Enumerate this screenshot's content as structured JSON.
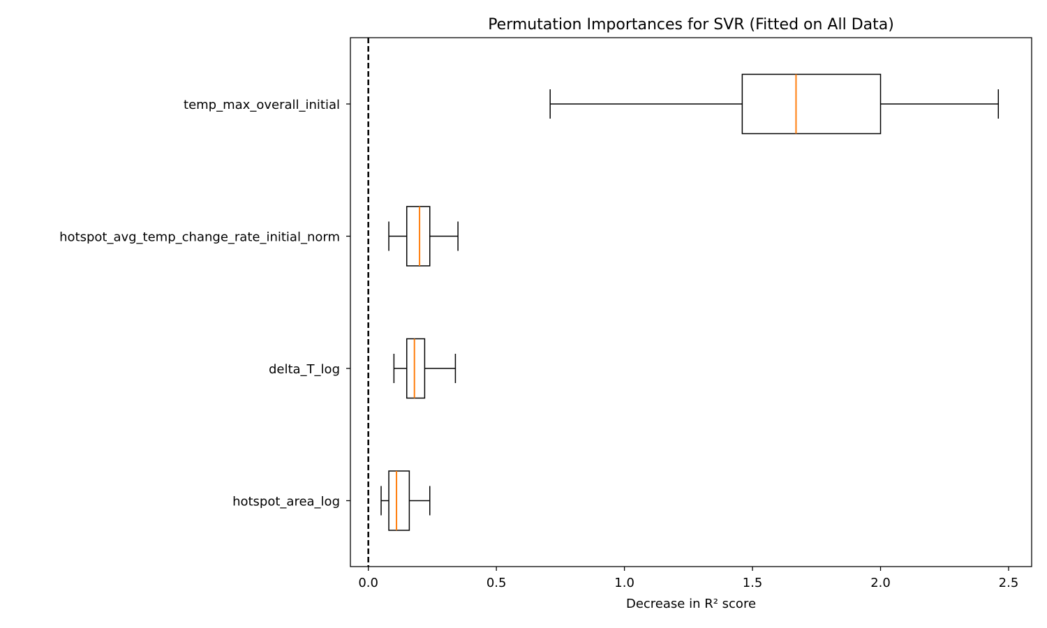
{
  "chart_data": {
    "type": "boxplot",
    "orientation": "horizontal",
    "title": "Permutation Importances for SVR (Fitted on All Data)",
    "xlabel": "Decrease in R² score",
    "ylabel": "",
    "xlim": [
      -0.07,
      2.59
    ],
    "xticks": [
      0.0,
      0.5,
      1.0,
      1.5,
      2.0,
      2.5
    ],
    "xtick_labels": [
      "0.0",
      "0.5",
      "1.0",
      "1.5",
      "2.0",
      "2.5"
    ],
    "reference_line": {
      "x": 0.0,
      "style": "dashed",
      "color": "#000000"
    },
    "colors": {
      "box": "#000000",
      "median": "#ff7f0e",
      "whisker": "#000000"
    },
    "categories": [
      "temp_max_overall_initial",
      "hotspot_avg_temp_change_rate_initial_norm",
      "delta_T_log",
      "hotspot_area_log"
    ],
    "boxes": [
      {
        "feature": "temp_max_overall_initial",
        "whisker_low": 0.71,
        "q1": 1.46,
        "median": 1.67,
        "q3": 2.0,
        "whisker_high": 2.46
      },
      {
        "feature": "hotspot_avg_temp_change_rate_initial_norm",
        "whisker_low": 0.08,
        "q1": 0.15,
        "median": 0.2,
        "q3": 0.24,
        "whisker_high": 0.35
      },
      {
        "feature": "delta_T_log",
        "whisker_low": 0.1,
        "q1": 0.15,
        "median": 0.18,
        "q3": 0.22,
        "whisker_high": 0.34
      },
      {
        "feature": "hotspot_area_log",
        "whisker_low": 0.05,
        "q1": 0.08,
        "median": 0.11,
        "q3": 0.16,
        "whisker_high": 0.24
      }
    ]
  }
}
